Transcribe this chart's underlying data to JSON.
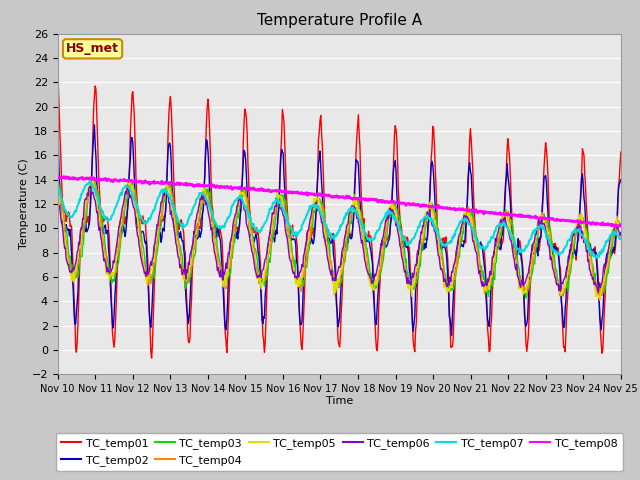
{
  "title": "Temperature Profile A",
  "xlabel": "Time",
  "ylabel": "Temperature (C)",
  "ylim": [
    -2,
    26
  ],
  "xlim": [
    0,
    15
  ],
  "xtick_labels": [
    "Nov 10",
    "Nov 11",
    "Nov 12",
    "Nov 13",
    "Nov 14",
    "Nov 15",
    "Nov 16",
    "Nov 17",
    "Nov 18",
    "Nov 19",
    "Nov 20",
    "Nov 21",
    "Nov 22",
    "Nov 23",
    "Nov 24",
    "Nov 25"
  ],
  "legend_entries": [
    "TC_temp01",
    "TC_temp02",
    "TC_temp03",
    "TC_temp04",
    "TC_temp05",
    "TC_temp06",
    "TC_temp07",
    "TC_temp08"
  ],
  "line_colors": [
    "#ff0000",
    "#0000cc",
    "#00dd00",
    "#ff8800",
    "#dddd00",
    "#8800cc",
    "#00dddd",
    "#ff00ff"
  ],
  "annotation_label": "HS_met",
  "annotation_color": "#8b0000",
  "annotation_bg": "#ffff99",
  "annotation_border": "#cc8800",
  "plot_bg": "#e8e8e8",
  "fig_bg": "#c8c8c8",
  "title_fontsize": 11,
  "axis_fontsize": 8,
  "legend_fontsize": 8
}
